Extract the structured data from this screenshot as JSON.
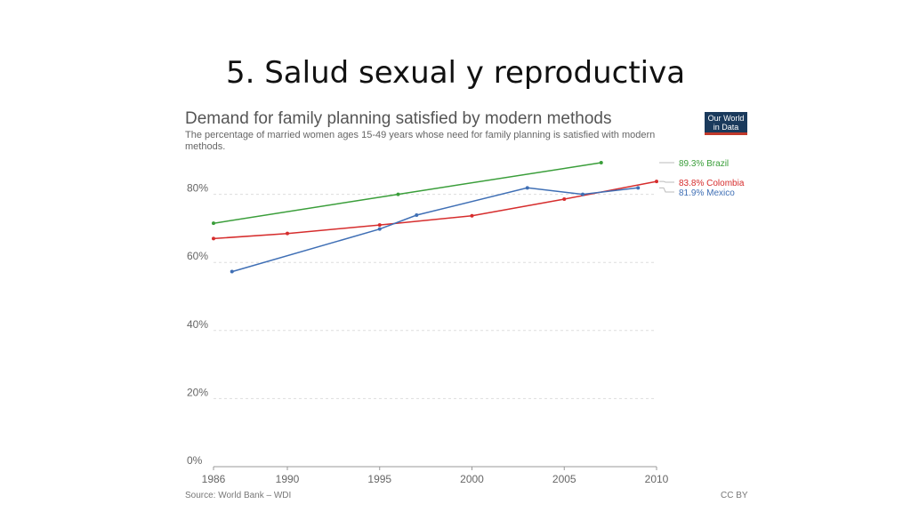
{
  "slide": {
    "title": "5.  Salud sexual y reproductiva"
  },
  "chart_header": {
    "title": "Demand for family planning satisfied by modern methods",
    "subtitle": "The percentage of married women ages 15-49 years whose need for family planning is satisfied with modern methods.",
    "logo_line1": "Our World",
    "logo_line2": "in Data"
  },
  "footer": {
    "source": "Source: World Bank – WDI",
    "license": "CC BY"
  },
  "chart_data": {
    "type": "line",
    "title": "Demand for family planning satisfied by modern methods",
    "xlabel": "",
    "ylabel": "",
    "xlim": [
      1986,
      2010
    ],
    "ylim": [
      0,
      89.3
    ],
    "x_ticks": [
      "1986",
      "1990",
      "1995",
      "2000",
      "2005",
      "2010"
    ],
    "y_ticks": [
      "0%",
      "20%",
      "40%",
      "60%",
      "80%"
    ],
    "grid": true,
    "legend": "right end labels",
    "series": [
      {
        "name": "Brazil",
        "end_label": "89.3% Brazil",
        "color": "#3a9e3a",
        "x": [
          1986,
          1996,
          2007
        ],
        "y": [
          71.5,
          80.0,
          89.3
        ]
      },
      {
        "name": "Colombia",
        "end_label": "83.8% Colombia",
        "color": "#d62d2d",
        "x": [
          1986,
          1990,
          1995,
          2000,
          2005,
          2010
        ],
        "y": [
          67.0,
          68.5,
          71.0,
          73.7,
          78.6,
          83.8
        ]
      },
      {
        "name": "Mexico",
        "end_label": "81.9% Mexico",
        "color": "#3f6fb5",
        "x": [
          1987,
          1995,
          1997,
          2003,
          2006,
          2009
        ],
        "y": [
          57.3,
          69.8,
          73.9,
          81.9,
          80.0,
          81.9
        ]
      }
    ]
  }
}
